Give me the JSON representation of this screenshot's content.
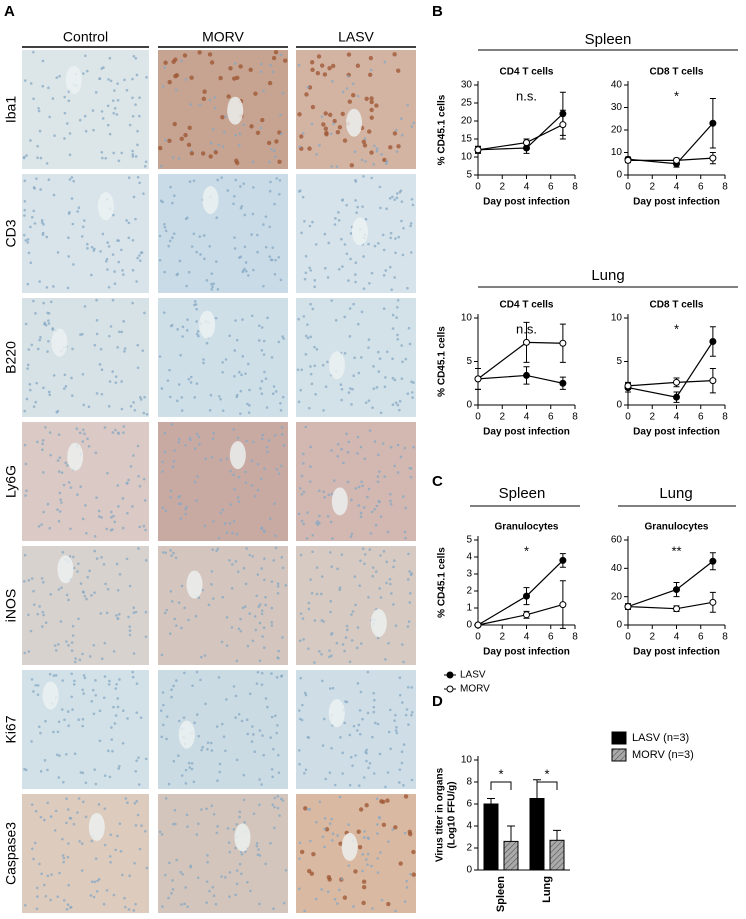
{
  "panel_a": {
    "label": "A",
    "columns": [
      "Control",
      "MORV",
      "LASV"
    ],
    "rows": [
      "Iba1",
      "CD3",
      "B220",
      "Ly6G",
      "iNOS",
      "Ki67",
      "Caspase3"
    ]
  },
  "panel_b": {
    "label": "B",
    "groups": [
      "Spleen",
      "Lung"
    ]
  },
  "panel_c": {
    "label": "C",
    "groups": [
      "Spleen",
      "Lung"
    ]
  },
  "panel_d": {
    "label": "D"
  },
  "chart_data": [
    {
      "type": "line",
      "title": "CD4 T cells",
      "annotation": "n.s.",
      "ylabel": "% CD45.1 cells",
      "xlabel": "Day post infection",
      "x": [
        0,
        4,
        7
      ],
      "xlim": [
        0,
        8
      ],
      "xticks": [
        0,
        2,
        4,
        6,
        8
      ],
      "ylim": [
        5,
        30
      ],
      "yticks": [
        5,
        10,
        15,
        20,
        25,
        30
      ],
      "series": [
        {
          "marker": "filled",
          "color": "#000000",
          "values": [
            12,
            12.5,
            22
          ],
          "errors": [
            1,
            1.5,
            6
          ]
        },
        {
          "marker": "open",
          "color": "#000000",
          "values": [
            12,
            14,
            19
          ],
          "errors": [
            0.8,
            1,
            4
          ]
        }
      ]
    },
    {
      "type": "line",
      "title": "CD8 T cells",
      "annotation": "*",
      "xlabel": "Day post infection",
      "x": [
        0,
        4,
        7
      ],
      "xlim": [
        0,
        8
      ],
      "xticks": [
        0,
        2,
        4,
        6,
        8
      ],
      "ylim": [
        0,
        40
      ],
      "yticks": [
        0,
        10,
        20,
        30,
        40
      ],
      "series": [
        {
          "marker": "filled",
          "color": "#000000",
          "values": [
            7,
            5,
            23
          ],
          "errors": [
            1,
            1.5,
            11
          ]
        },
        {
          "marker": "open",
          "color": "#000000",
          "values": [
            6.5,
            6.5,
            7.5
          ],
          "errors": [
            1,
            1,
            2.5
          ]
        }
      ]
    },
    {
      "type": "line",
      "title": "CD4 T cells",
      "annotation": "n.s.",
      "ylabel": "% CD45.1 cells",
      "xlabel": "Day post infection",
      "x": [
        0,
        4,
        7
      ],
      "xlim": [
        0,
        8
      ],
      "xticks": [
        0,
        2,
        4,
        6,
        8
      ],
      "ylim": [
        0,
        10
      ],
      "yticks": [
        0,
        5,
        10
      ],
      "series": [
        {
          "marker": "filled",
          "color": "#000000",
          "values": [
            3,
            3.4,
            2.5
          ],
          "errors": [
            1.2,
            1,
            0.7
          ]
        },
        {
          "marker": "open",
          "color": "#000000",
          "values": [
            3,
            7.2,
            7.1
          ],
          "errors": [
            1.2,
            2.3,
            2.2
          ]
        }
      ]
    },
    {
      "type": "line",
      "title": "CD8 T cells",
      "annotation": "*",
      "xlabel": "Day post infection",
      "x": [
        0,
        4,
        7
      ],
      "xlim": [
        0,
        8
      ],
      "xticks": [
        0,
        2,
        4,
        6,
        8
      ],
      "ylim": [
        0,
        10
      ],
      "yticks": [
        0,
        5,
        10
      ],
      "series": [
        {
          "marker": "filled",
          "color": "#000000",
          "values": [
            2,
            0.9,
            7.3
          ],
          "errors": [
            0.5,
            0.6,
            1.7
          ]
        },
        {
          "marker": "open",
          "color": "#000000",
          "values": [
            2.2,
            2.6,
            2.8
          ],
          "errors": [
            0.4,
            0.5,
            1.4
          ]
        }
      ]
    },
    {
      "type": "line",
      "title": "Granulocytes",
      "annotation": "*",
      "ylabel": "% CD45.1 cells",
      "xlabel": "Day post infection",
      "x": [
        0,
        4,
        7
      ],
      "xlim": [
        0,
        8
      ],
      "xticks": [
        0,
        2,
        4,
        6,
        8
      ],
      "ylim": [
        0,
        5
      ],
      "yticks": [
        0,
        1,
        2,
        3,
        4,
        5
      ],
      "legend": "below",
      "series": [
        {
          "name": "LASV",
          "marker": "filled",
          "color": "#000000",
          "values": [
            0,
            1.7,
            3.8
          ],
          "errors": [
            0.05,
            0.5,
            0.4
          ]
        },
        {
          "name": "MORV",
          "marker": "open",
          "color": "#000000",
          "values": [
            0,
            0.6,
            1.2
          ],
          "errors": [
            0.05,
            0.2,
            1.4
          ]
        }
      ]
    },
    {
      "type": "line",
      "title": "Granulocytes",
      "annotation": "**",
      "xlabel": "Day post infection",
      "x": [
        0,
        4,
        7
      ],
      "xlim": [
        0,
        8
      ],
      "xticks": [
        0,
        2,
        4,
        6,
        8
      ],
      "ylim": [
        0,
        60
      ],
      "yticks": [
        0,
        20,
        40,
        60
      ],
      "series": [
        {
          "marker": "filled",
          "color": "#000000",
          "values": [
            13,
            25,
            45
          ],
          "errors": [
            2,
            5,
            6
          ]
        },
        {
          "marker": "open",
          "color": "#000000",
          "values": [
            13,
            11.5,
            16
          ],
          "errors": [
            2,
            2,
            7
          ]
        }
      ]
    },
    {
      "type": "bar",
      "ylabel": [
        "Virus titer in organs",
        "(Log10 FFU/g)"
      ],
      "categories": [
        "Spleen",
        "Lung"
      ],
      "annotations": [
        "*",
        "*"
      ],
      "ylim": [
        0,
        10
      ],
      "yticks": [
        0,
        2,
        4,
        6,
        8,
        10
      ],
      "legend": "right",
      "series": [
        {
          "name": "LASV (n=3)",
          "color": "#000000",
          "values": [
            6,
            6.5
          ],
          "errors": [
            0.5,
            1.7
          ]
        },
        {
          "name": "MORV (n=3)",
          "color": "#aaaaaa",
          "hatch": true,
          "values": [
            2.6,
            2.7
          ],
          "errors": [
            1.4,
            0.9
          ]
        }
      ]
    }
  ]
}
